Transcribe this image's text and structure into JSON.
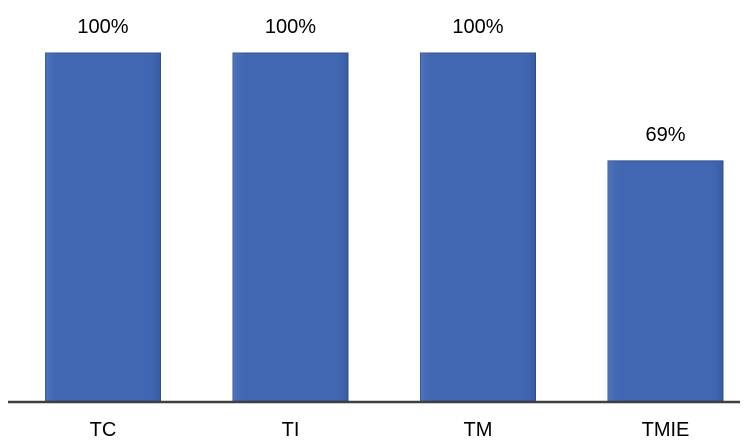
{
  "chart_data": {
    "type": "bar",
    "categories": [
      "TC",
      "TI",
      "TM",
      "TMIE"
    ],
    "values": [
      100,
      100,
      100,
      69
    ],
    "data_labels": [
      "100%",
      "100%",
      "100%",
      "69%"
    ],
    "value_unit": "%",
    "ylim": [
      0,
      100
    ],
    "title": "",
    "xlabel": "",
    "ylabel": "",
    "grid": false,
    "legend": "none",
    "bar_color": "#4267b2",
    "bar_edge_color": "#2f4f8f",
    "axis_color": "#3f3f3f"
  }
}
